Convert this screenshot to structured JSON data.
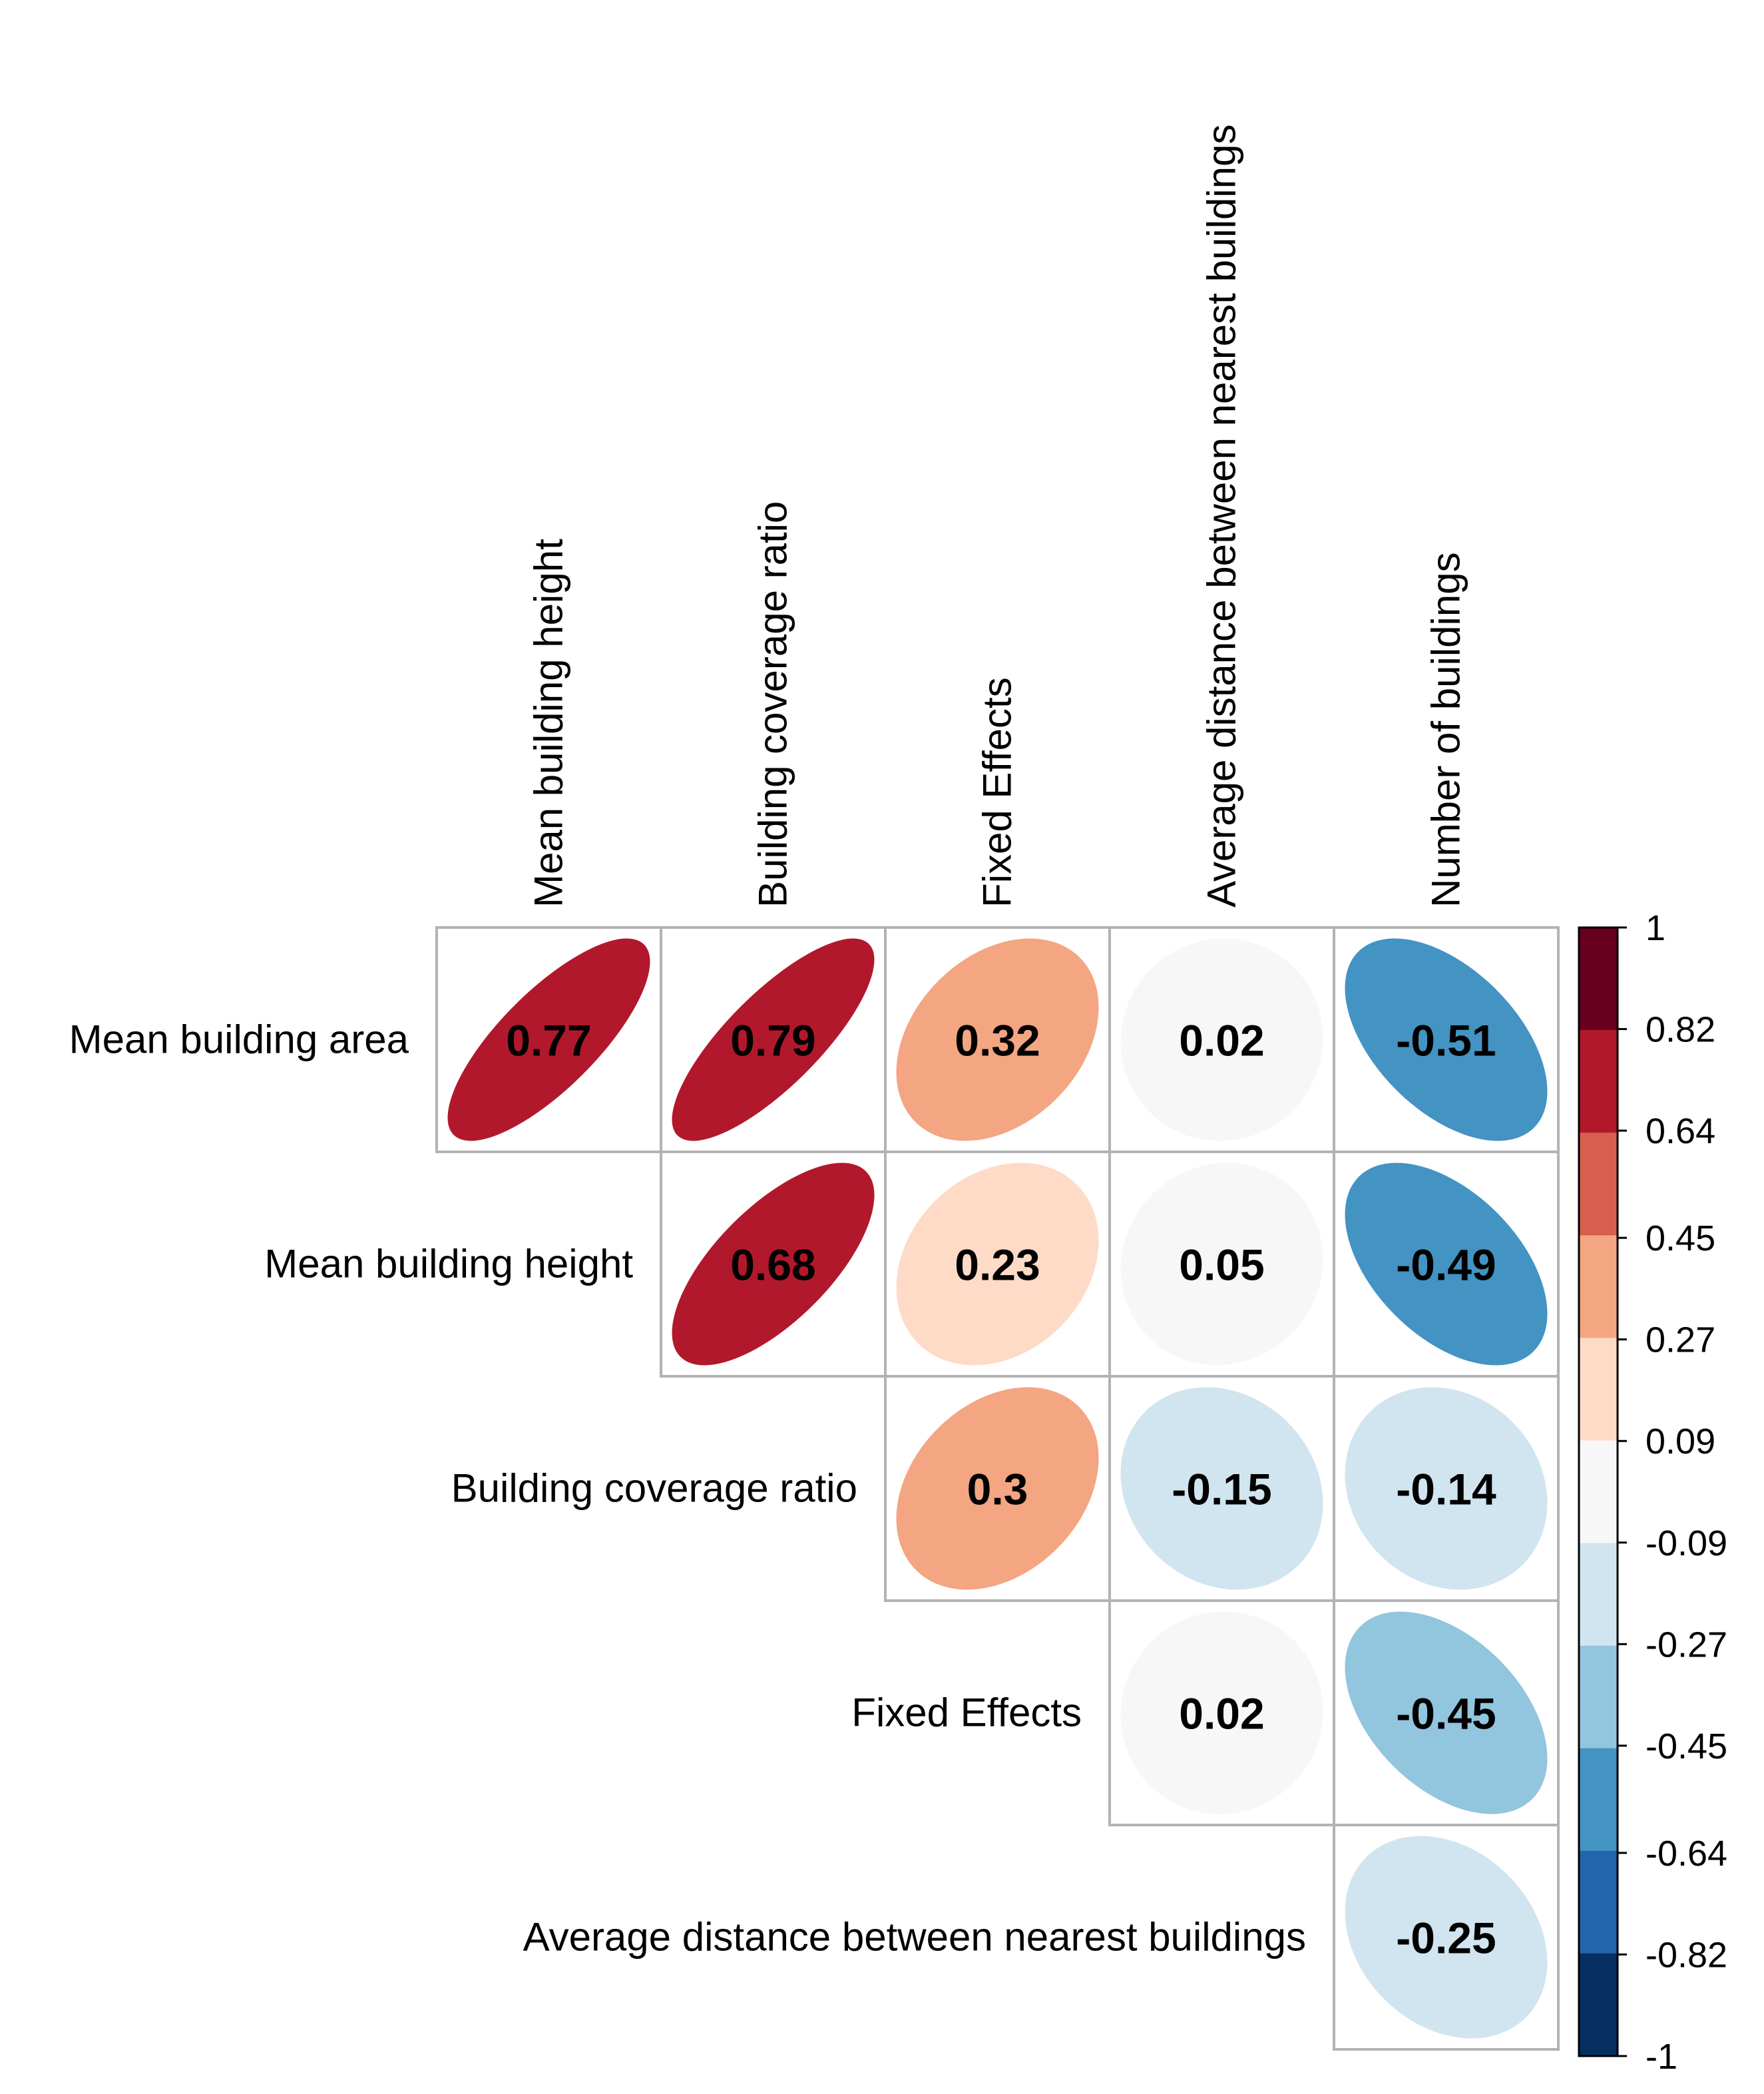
{
  "chart_data": {
    "type": "heatmap",
    "title": "",
    "style": "upper-triangle correlation matrix with ellipse glyphs",
    "rows": [
      "Mean building area",
      "Mean building height",
      "Building coverage ratio",
      "Fixed Effects",
      "Average distance between nearest buildings"
    ],
    "columns": [
      "Mean building height",
      "Building coverage ratio",
      "Fixed Effects",
      "Average distance between nearest buildings",
      "Number of buildings"
    ],
    "values": [
      [
        0.77,
        0.79,
        0.32,
        0.02,
        -0.51
      ],
      [
        null,
        0.68,
        0.23,
        0.05,
        -0.49
      ],
      [
        null,
        null,
        0.3,
        -0.15,
        -0.14
      ],
      [
        null,
        null,
        null,
        0.02,
        -0.45
      ],
      [
        null,
        null,
        null,
        null,
        -0.25
      ]
    ],
    "value_labels": [
      [
        "0.77",
        "0.79",
        "0.32",
        "0.02",
        "-0.51"
      ],
      [
        "",
        "0.68",
        "0.23",
        "0.05",
        "-0.49"
      ],
      [
        "",
        "",
        "0.3",
        "-0.15",
        "-0.14"
      ],
      [
        "",
        "",
        "",
        "0.02",
        "-0.45"
      ],
      [
        "",
        "",
        "",
        "",
        "-0.25"
      ]
    ],
    "colorbar": {
      "range": [
        -1,
        1
      ],
      "tick_labels": [
        "1",
        "0.82",
        "0.64",
        "0.45",
        "0.27",
        "0.09",
        "-0.09",
        "-0.27",
        "-0.45",
        "-0.64",
        "-0.82",
        "-1"
      ],
      "colors_top_to_bottom": [
        "#67001F",
        "#B2182B",
        "#D6604D",
        "#F4A582",
        "#FDDBC7",
        "#F7F7F7",
        "#D1E5F0",
        "#92C5DE",
        "#4393C3",
        "#2166AC",
        "#053061"
      ]
    }
  }
}
